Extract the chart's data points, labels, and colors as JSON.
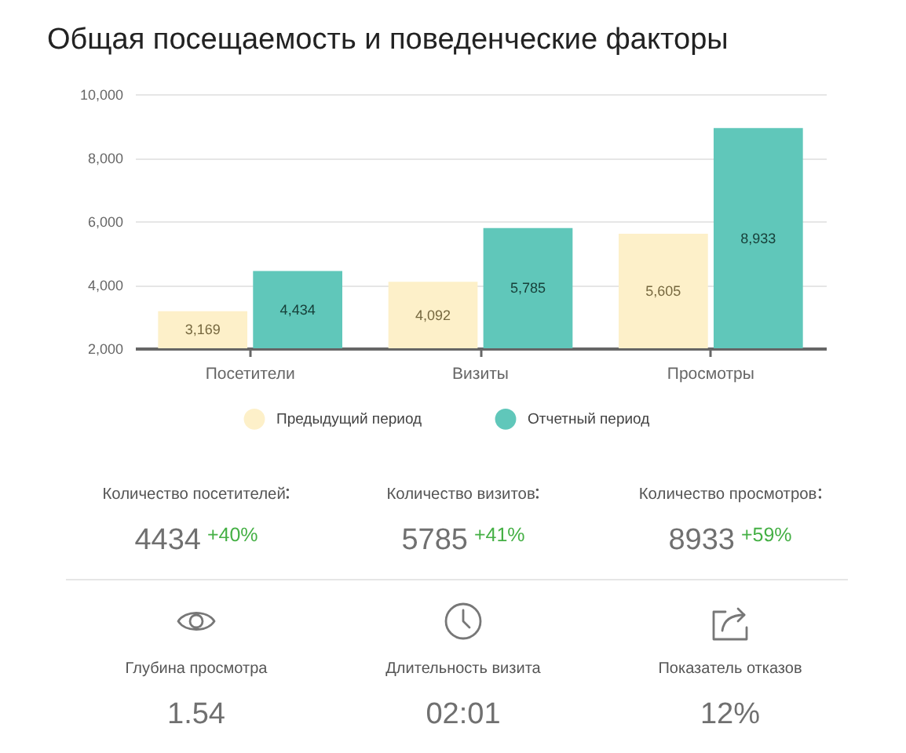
{
  "chart_data": [
    {
      "type": "bar",
      "title": "Общая посещаемость и поведенческие факторы",
      "categories": [
        "Посетители",
        "Визиты",
        "Просмотры"
      ],
      "series": [
        {
          "name": "Предыдущий период",
          "color": "#fdf0c9",
          "values": [
            3169,
            4092,
            5605
          ],
          "value_labels": [
            "3,169",
            "4,092",
            "5,605"
          ]
        },
        {
          "name": "Отчетный период",
          "color": "#60c7ba",
          "values": [
            4434,
            5785,
            8933
          ],
          "value_labels": [
            "4,434",
            "5,785",
            "8,933"
          ]
        }
      ],
      "ylim": [
        2000,
        10000
      ],
      "yticks": [
        {
          "value": 2000,
          "label": "2,000"
        },
        {
          "value": 4000,
          "label": "4,000"
        },
        {
          "value": 6000,
          "label": "6,000"
        },
        {
          "value": 8000,
          "label": "8,000"
        },
        {
          "value": 10000,
          "label": "10,000"
        }
      ],
      "grid": "y",
      "legend": "bottom"
    },
    {
      "type": "other",
      "categories": [
        "Количество посетителей",
        "Количество визитов",
        "Количество просмотров"
      ],
      "value_labels": [
        "4434",
        "5785",
        "8933"
      ],
      "annotations": [
        "+40%",
        "+41%",
        "+59%"
      ]
    },
    {
      "type": "other",
      "categories": [
        "Глубина просмотра",
        "Длительность визита",
        "Показатель отказов"
      ],
      "value_labels": [
        "1.54",
        "02:01",
        "12%"
      ]
    }
  ]
}
